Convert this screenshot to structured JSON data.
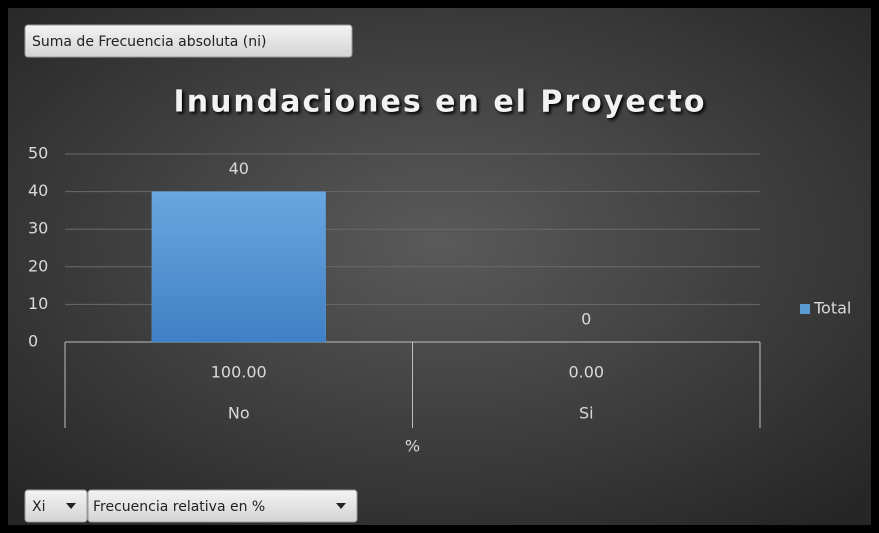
{
  "field_buttons": {
    "value": "Suma de Frecuencia absoluta (ni)",
    "axis": [
      "Xi",
      "Frecuencia relativa en %"
    ]
  },
  "chart_data": {
    "type": "bar",
    "title": "Inundaciones en el Proyecto",
    "categories": [
      "No",
      "Si"
    ],
    "sub_categories": [
      "100.00",
      "0.00"
    ],
    "x_label": "%",
    "series": [
      {
        "name": "Total",
        "color": "#5b9bd5",
        "values": [
          40,
          0
        ]
      }
    ],
    "ylim": [
      0,
      50
    ],
    "yticks": [
      0,
      10,
      20,
      30,
      40,
      50
    ],
    "grid": true,
    "legend": "right",
    "data_labels": true
  }
}
